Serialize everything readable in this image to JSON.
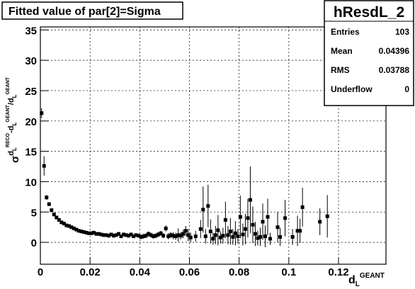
{
  "chart_data": {
    "type": "scatter",
    "title": "Fitted value of par[2]=Sigma",
    "ylabel": [
      "σ",
      "d",
      "L",
      "RECO",
      "-d",
      "L",
      "GEANT",
      "/d",
      "L",
      "GEANT"
    ],
    "xlabel": [
      "d",
      "L",
      "GEANT"
    ],
    "xlim": [
      0,
      0.1391
    ],
    "ylim": [
      -3.6,
      35.5
    ],
    "xticks": [
      0,
      0.02,
      0.04,
      0.06,
      0.08,
      0.1,
      0.12
    ],
    "yticks": [
      0,
      5,
      10,
      15,
      20,
      25,
      30,
      35
    ],
    "grid": true,
    "color": "#000000",
    "stats": {
      "title": "hResdL_2",
      "rows": [
        [
          "Entries",
          103
        ],
        [
          "Mean",
          0.04396
        ],
        [
          "RMS",
          0.03788
        ],
        [
          "Underflow",
          0
        ]
      ]
    },
    "series": [
      {
        "x": [
          0.0005,
          0.0015,
          0.0025,
          0.0035,
          0.0045,
          0.0055,
          0.0065,
          0.0075,
          0.0085,
          0.0095,
          0.0105,
          0.0115,
          0.0125,
          0.0135,
          0.0145,
          0.0155,
          0.0165,
          0.0175,
          0.0185,
          0.0195,
          0.0205,
          0.0215,
          0.0225,
          0.0235,
          0.0245,
          0.0255,
          0.0265,
          0.0275,
          0.0285,
          0.0295,
          0.0305,
          0.0315,
          0.0325,
          0.0335,
          0.0345,
          0.0355,
          0.0365,
          0.0375,
          0.0385,
          0.0395,
          0.0405,
          0.0415,
          0.0425,
          0.0435,
          0.0445,
          0.0455,
          0.0465,
          0.0475,
          0.0485,
          0.0495,
          0.0505,
          0.0515,
          0.0525,
          0.0535,
          0.0545,
          0.0555,
          0.0565,
          0.0575,
          0.0585,
          0.0595,
          0.0605,
          0.0625,
          0.0645,
          0.0655,
          0.0665,
          0.0675,
          0.0685,
          0.0695,
          0.0705,
          0.0715,
          0.0725,
          0.0735,
          0.0745,
          0.0755,
          0.0765,
          0.0775,
          0.0785,
          0.0795,
          0.0805,
          0.0815,
          0.0825,
          0.0835,
          0.0845,
          0.0855,
          0.0865,
          0.0875,
          0.0885,
          0.0895,
          0.0905,
          0.0915,
          0.0925,
          0.0955,
          0.0965,
          0.0985,
          0.1015,
          0.1035,
          0.1045,
          0.1055,
          0.1125,
          0.1155
        ],
        "values": [
          21.3,
          12.6,
          7.4,
          6.3,
          5.3,
          4.6,
          4.1,
          3.7,
          3.3,
          3.1,
          2.8,
          2.7,
          2.5,
          2.3,
          2.1,
          1.9,
          1.8,
          1.7,
          1.6,
          1.5,
          1.5,
          1.6,
          1.4,
          1.4,
          1.3,
          1.2,
          1.2,
          1.1,
          1.3,
          1.1,
          1.2,
          1.4,
          1.0,
          1.3,
          1.2,
          1.1,
          1.3,
          1.0,
          1.2,
          1.1,
          0.9,
          1.0,
          1.1,
          1.4,
          1.2,
          1.0,
          1.1,
          1.3,
          1.5,
          1.1,
          2.3,
          1.0,
          1.2,
          1.1,
          1.0,
          1.2,
          1.1,
          1.4,
          1.9,
          1.2,
          0.8,
          1.0,
          2.2,
          5.4,
          1.0,
          6.0,
          1.8,
          0.6,
          1.2,
          2.0,
          0.8,
          1.1,
          3.7,
          1.2,
          1.8,
          0.9,
          1.5,
          1.0,
          4.2,
          1.3,
          2.2,
          4.0,
          7.0,
          2.9,
          1.4,
          0.7,
          0.9,
          3.4,
          1.0,
          4.2,
          0.6,
          2.5,
          0.9,
          4.0,
          0.9,
          1.9,
          1.9,
          5.8,
          3.4,
          4.3
        ],
        "errors": [
          0.8,
          1.6,
          0.4,
          0.3,
          0.3,
          0.3,
          0.2,
          0.2,
          0.2,
          0.2,
          0.2,
          0.2,
          0.2,
          0.2,
          0.2,
          0.2,
          0.2,
          0.2,
          0.2,
          0.2,
          0.3,
          0.3,
          0.3,
          0.3,
          0.3,
          0.3,
          0.3,
          0.3,
          0.3,
          0.3,
          0.3,
          0.3,
          0.3,
          0.3,
          0.3,
          0.3,
          0.3,
          0.3,
          0.3,
          0.3,
          0.4,
          0.4,
          0.4,
          0.4,
          0.4,
          0.4,
          0.4,
          0.4,
          0.4,
          0.4,
          0.5,
          0.5,
          0.5,
          0.6,
          0.6,
          1.1,
          0.6,
          0.7,
          0.8,
          1.0,
          0.8,
          0.9,
          1.5,
          3.8,
          1.2,
          3.5,
          2.0,
          1.0,
          1.5,
          2.5,
          1.0,
          1.3,
          3.0,
          1.5,
          2.2,
          1.3,
          2.0,
          1.2,
          3.5,
          1.8,
          2.5,
          3.2,
          5.5,
          3.0,
          2.0,
          1.2,
          1.5,
          3.0,
          1.8,
          3.0,
          1.0,
          2.5,
          1.5,
          3.0,
          1.3,
          2.5,
          2.0,
          3.2,
          2.2,
          3.5
        ]
      }
    ]
  }
}
